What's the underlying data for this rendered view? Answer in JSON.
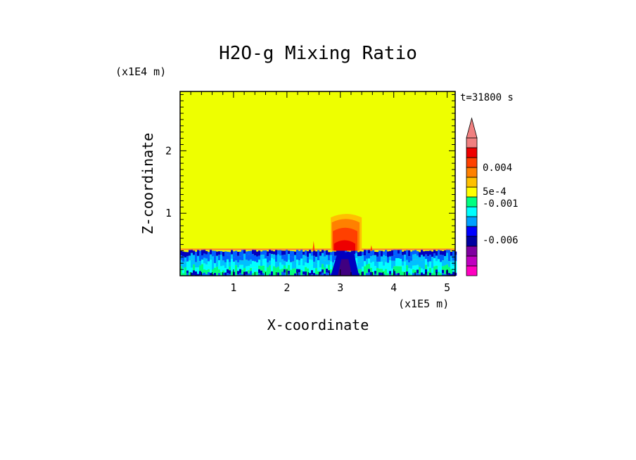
{
  "chart_data": {
    "type": "heatmap",
    "title": "H2O-g Mixing Ratio",
    "xlabel": "X-coordinate",
    "ylabel": "Z-coordinate",
    "x_unit": "(x1E5 m)",
    "y_unit": "(x1E4 m)",
    "time_label": "t=31800 s",
    "xlim": [
      0,
      5.15
    ],
    "ylim": [
      0,
      2.95
    ],
    "x_ticks": [
      1,
      2,
      3,
      4,
      5
    ],
    "y_ticks": [
      1,
      2
    ],
    "colorbar": {
      "extend_max": true,
      "levels": [
        {
          "color": "#ff00c0"
        },
        {
          "color": "#c000c0"
        },
        {
          "color": "#8000a0"
        },
        {
          "color": "#0000a0"
        },
        {
          "color": "#0000ff"
        },
        {
          "color": "#00a0ff"
        },
        {
          "color": "#00ffff"
        },
        {
          "color": "#00ff80"
        },
        {
          "color": "#ffff00"
        },
        {
          "color": "#ffc000"
        },
        {
          "color": "#ff8000"
        },
        {
          "color": "#ff4000"
        },
        {
          "color": "#ee0000"
        },
        {
          "color": "#f08080"
        }
      ],
      "tick_labels": [
        "0.004",
        "5e-4",
        "-0.001",
        "-0.006"
      ]
    },
    "field": {
      "background_value_color": "#eeff00",
      "boundary_layer_top_z": 0.4,
      "plume": {
        "x_range": [
          2.8,
          3.4
        ],
        "z_top": 1.0,
        "colors": [
          "#ffc000",
          "#ff8000",
          "#ff4000",
          "#ee0000"
        ]
      },
      "lower_band_colors": [
        "#0000c0",
        "#0060ff",
        "#00c0ff",
        "#00ffff",
        "#00ff80"
      ]
    }
  }
}
